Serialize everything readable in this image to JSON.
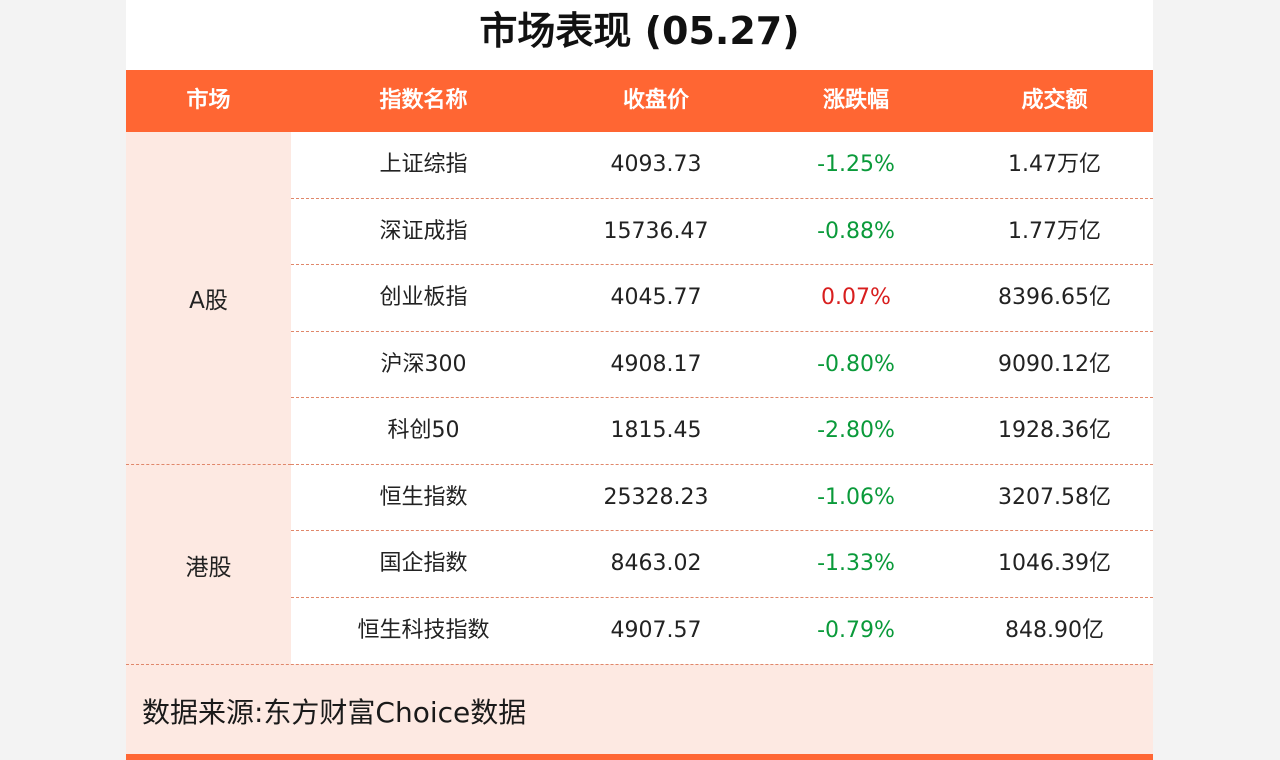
{
  "title": "市场表现 (05.27)",
  "columns": [
    "市场",
    "指数名称",
    "收盘价",
    "涨跌幅",
    "成交额"
  ],
  "markets": [
    {
      "name": "A股",
      "rows": [
        {
          "index": "上证综指",
          "close": "4093.73",
          "change": "-1.25%",
          "turnover": "1.47万亿",
          "direction": "down"
        },
        {
          "index": "深证成指",
          "close": "15736.47",
          "change": "-0.88%",
          "turnover": "1.77万亿",
          "direction": "down"
        },
        {
          "index": "创业板指",
          "close": "4045.77",
          "change": "0.07%",
          "turnover": "8396.65亿",
          "direction": "up"
        },
        {
          "index": "沪深300",
          "close": "4908.17",
          "change": "-0.80%",
          "turnover": "9090.12亿",
          "direction": "down"
        },
        {
          "index": "科创50",
          "close": "1815.45",
          "change": "-2.80%",
          "turnover": "1928.36亿",
          "direction": "down"
        }
      ]
    },
    {
      "name": "港股",
      "rows": [
        {
          "index": "恒生指数",
          "close": "25328.23",
          "change": "-1.06%",
          "turnover": "3207.58亿",
          "direction": "down"
        },
        {
          "index": "国企指数",
          "close": "8463.02",
          "change": "-1.33%",
          "turnover": "1046.39亿",
          "direction": "down"
        },
        {
          "index": "恒生科技指数",
          "close": "4907.57",
          "change": "-0.79%",
          "turnover": "848.90亿",
          "direction": "down"
        }
      ]
    }
  ],
  "source": "数据来源:东方财富Choice数据",
  "colors": {
    "header_bg": "#ff6633",
    "row_alt_bg": "#fde9e2",
    "down": "#0a9a3a",
    "up": "#d81e1e"
  }
}
